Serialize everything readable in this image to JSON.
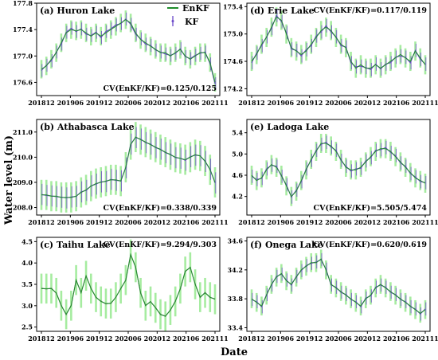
{
  "figure": {
    "ylabel": "Water level (m)",
    "xlabel": "Date",
    "legend": [
      {
        "label": "EnKF",
        "color": "#1e8c2a",
        "kind": "line"
      },
      {
        "label": "KF",
        "color": "#6a48c8",
        "kind": "errorbar"
      }
    ]
  },
  "chart_data": [
    {
      "id": "a",
      "type": "line",
      "title": "(a) Huron Lake",
      "cv": "CV(EnKF/KF)=0.125/0.125",
      "x_ticks": [
        "201812",
        "201906",
        "201912",
        "202006",
        "202012",
        "202106",
        "202111"
      ],
      "xlim": [
        0,
        35
      ],
      "ylim": [
        176.4,
        177.8
      ],
      "y_ticks": [
        "177.8",
        "177.4",
        "177.0",
        "176.6"
      ],
      "y_tick_values": [
        177.8,
        177.4,
        177.0,
        176.6
      ],
      "kf_style": "purple",
      "band_halfwidth": 0.14,
      "x": [
        0,
        1,
        2,
        3,
        4,
        5,
        6,
        7,
        8,
        9,
        10,
        11,
        12,
        13,
        14,
        15,
        16,
        17,
        18,
        19,
        20,
        21,
        22,
        23,
        24,
        25,
        26,
        27,
        28,
        29,
        30,
        31,
        32,
        33,
        34,
        35
      ],
      "series": [
        {
          "name": "EnKF",
          "values": [
            176.8,
            176.85,
            176.95,
            177.05,
            177.2,
            177.35,
            177.4,
            177.38,
            177.4,
            177.35,
            177.3,
            177.35,
            177.3,
            177.35,
            177.4,
            177.45,
            177.5,
            177.55,
            177.5,
            177.35,
            177.25,
            177.2,
            177.15,
            177.1,
            177.05,
            177.05,
            177.0,
            177.05,
            177.1,
            177.0,
            176.95,
            177.0,
            177.05,
            177.05,
            176.9,
            176.6
          ]
        },
        {
          "name": "KF",
          "values": [
            176.78,
            176.86,
            176.93,
            177.06,
            177.18,
            177.36,
            177.42,
            177.37,
            177.41,
            177.33,
            177.31,
            177.36,
            177.28,
            177.37,
            177.41,
            177.47,
            177.49,
            177.56,
            177.48,
            177.33,
            177.26,
            177.18,
            177.16,
            177.09,
            177.06,
            177.03,
            177.01,
            177.04,
            177.11,
            176.99,
            176.96,
            177.01,
            177.04,
            177.06,
            176.88,
            176.58
          ]
        }
      ]
    },
    {
      "id": "b",
      "type": "line",
      "title": "(b) Athabasca Lake",
      "cv": "CV(EnKF/KF)=0.338/0.339",
      "x_ticks": [
        "201812",
        "201906",
        "201912",
        "202006",
        "202012",
        "202106",
        "202111"
      ],
      "xlim": [
        0,
        35
      ],
      "ylim": [
        207.7,
        211.5
      ],
      "y_ticks": [
        "211.0",
        "210.0",
        "209.0",
        "208.0"
      ],
      "y_tick_values": [
        211.0,
        210.0,
        209.0,
        208.0
      ],
      "kf_style": "purple",
      "band_halfwidth": 0.6,
      "x": [
        0,
        1,
        2,
        3,
        4,
        5,
        6,
        7,
        8,
        9,
        10,
        11,
        12,
        13,
        14,
        15,
        16,
        17,
        18,
        19,
        20,
        21,
        22,
        23,
        24,
        25,
        26,
        27,
        28,
        29,
        30,
        31,
        32,
        33,
        34,
        35
      ],
      "series": [
        {
          "name": "EnKF",
          "values": [
            208.5,
            208.5,
            208.45,
            208.45,
            208.4,
            208.4,
            208.4,
            208.45,
            208.6,
            208.7,
            208.85,
            208.95,
            209.0,
            209.05,
            209.1,
            209.1,
            209.05,
            209.6,
            210.5,
            210.8,
            210.7,
            210.6,
            210.5,
            210.4,
            210.3,
            210.2,
            210.1,
            210.0,
            209.95,
            209.9,
            210.0,
            210.1,
            210.05,
            209.85,
            209.5,
            209.0
          ]
        },
        {
          "name": "KF",
          "values": [
            208.52,
            208.48,
            208.46,
            208.43,
            208.41,
            208.38,
            208.42,
            208.44,
            208.62,
            208.68,
            208.86,
            208.93,
            209.02,
            209.03,
            209.12,
            209.08,
            209.06,
            209.58,
            210.52,
            210.78,
            210.72,
            210.58,
            210.52,
            210.38,
            210.32,
            210.18,
            210.12,
            209.98,
            209.96,
            209.88,
            210.02,
            210.08,
            210.06,
            209.83,
            209.52,
            208.98
          ]
        }
      ]
    },
    {
      "id": "c",
      "type": "line",
      "title": "(c) Taihu Lake",
      "cv": "CV(EnKF/KF)=9.294/9.303",
      "x_ticks": [
        "201812",
        "201906",
        "201912",
        "202006",
        "202012",
        "202106",
        "202111"
      ],
      "xlim": [
        0,
        35
      ],
      "ylim": [
        2.4,
        4.6
      ],
      "y_ticks": [
        "4.5",
        "4.0",
        "3.5",
        "3.0",
        "2.5"
      ],
      "y_tick_values": [
        4.5,
        4.0,
        3.5,
        3.0,
        2.5
      ],
      "kf_style": "green",
      "band_halfwidth": 0.35,
      "x": [
        0,
        1,
        2,
        3,
        4,
        5,
        6,
        7,
        8,
        9,
        10,
        11,
        12,
        13,
        14,
        15,
        16,
        17,
        18,
        19,
        20,
        21,
        22,
        23,
        24,
        25,
        26,
        27,
        28,
        29,
        30,
        31,
        32,
        33,
        34,
        35
      ],
      "series": [
        {
          "name": "EnKF",
          "values": [
            3.4,
            3.4,
            3.4,
            3.3,
            3.0,
            2.8,
            3.0,
            3.6,
            3.3,
            3.7,
            3.4,
            3.2,
            3.1,
            3.05,
            3.05,
            3.2,
            3.4,
            3.6,
            4.2,
            3.9,
            3.3,
            3.0,
            3.1,
            2.95,
            2.8,
            2.75,
            2.9,
            3.1,
            3.4,
            3.8,
            3.9,
            3.5,
            3.2,
            3.3,
            3.2,
            3.15
          ]
        },
        {
          "name": "KF",
          "values": [
            3.41,
            3.39,
            3.41,
            3.29,
            3.01,
            2.79,
            3.01,
            3.59,
            3.31,
            3.69,
            3.41,
            3.19,
            3.11,
            3.04,
            3.06,
            3.19,
            3.41,
            3.59,
            4.19,
            3.91,
            3.29,
            3.01,
            3.09,
            2.96,
            2.79,
            2.76,
            2.89,
            3.11,
            3.39,
            3.81,
            3.89,
            3.51,
            3.19,
            3.31,
            3.19,
            3.16
          ]
        }
      ]
    },
    {
      "id": "d",
      "type": "line",
      "title": "(d) Erie Lake",
      "cv": "CV(EnKF/KF)=0.117/0.119",
      "x_ticks": [
        "201812",
        "201906",
        "201912",
        "202006",
        "202012",
        "202106",
        "202111"
      ],
      "xlim": [
        0,
        35
      ],
      "ylim": [
        174.1,
        175.45
      ],
      "y_ticks": [
        "175.4",
        "175.0",
        "174.6",
        "174.2"
      ],
      "y_tick_values": [
        175.4,
        175.0,
        174.6,
        174.2
      ],
      "kf_style": "purple",
      "band_halfwidth": 0.14,
      "x": [
        0,
        1,
        2,
        3,
        4,
        5,
        6,
        7,
        8,
        9,
        10,
        11,
        12,
        13,
        14,
        15,
        16,
        17,
        18,
        19,
        20,
        21,
        22,
        23,
        24,
        25,
        26,
        27,
        28,
        29,
        30,
        31,
        32,
        33,
        34,
        35
      ],
      "series": [
        {
          "name": "EnKF",
          "values": [
            174.6,
            174.7,
            174.85,
            174.95,
            175.1,
            175.25,
            175.2,
            175.0,
            174.8,
            174.75,
            174.7,
            174.75,
            174.85,
            174.95,
            175.05,
            175.1,
            175.05,
            174.95,
            174.85,
            174.8,
            174.6,
            174.5,
            174.55,
            174.5,
            174.5,
            174.55,
            174.5,
            174.55,
            174.6,
            174.65,
            174.7,
            174.65,
            174.6,
            174.75,
            174.65,
            174.55
          ]
        },
        {
          "name": "KF",
          "values": [
            174.58,
            174.72,
            174.83,
            174.96,
            175.08,
            175.27,
            175.18,
            175.02,
            174.78,
            174.76,
            174.68,
            174.77,
            174.83,
            174.97,
            175.03,
            175.12,
            175.03,
            174.96,
            174.83,
            174.81,
            174.58,
            174.52,
            174.53,
            174.51,
            174.48,
            174.56,
            174.49,
            174.56,
            174.58,
            174.66,
            174.68,
            174.66,
            174.58,
            174.76,
            174.63,
            174.56
          ]
        }
      ]
    },
    {
      "id": "e",
      "type": "line",
      "title": "(e) Ladoga Lake",
      "cv": "CV(EnKF/KF)=5.505/5.474",
      "x_ticks": [
        "201812",
        "201906",
        "201912",
        "202006",
        "202012",
        "202106",
        "202111"
      ],
      "xlim": [
        0,
        35
      ],
      "ylim": [
        3.85,
        5.65
      ],
      "y_ticks": [
        "5.4",
        "5.0",
        "4.6",
        "4.2"
      ],
      "y_tick_values": [
        5.4,
        5.0,
        4.6,
        4.2
      ],
      "kf_style": "purple",
      "band_halfwidth": 0.18,
      "x": [
        0,
        1,
        2,
        3,
        4,
        5,
        6,
        7,
        8,
        9,
        10,
        11,
        12,
        13,
        14,
        15,
        16,
        17,
        18,
        19,
        20,
        21,
        22,
        23,
        24,
        25,
        26,
        27,
        28,
        29,
        30,
        31,
        32,
        33,
        34,
        35
      ],
      "series": [
        {
          "name": "EnKF",
          "values": [
            4.6,
            4.5,
            4.55,
            4.7,
            4.8,
            4.75,
            4.6,
            4.4,
            4.2,
            4.3,
            4.5,
            4.7,
            4.9,
            5.05,
            5.2,
            5.2,
            5.15,
            5.05,
            4.9,
            4.75,
            4.7,
            4.7,
            4.75,
            4.85,
            4.95,
            5.05,
            5.1,
            5.1,
            5.05,
            4.95,
            4.85,
            4.75,
            4.65,
            4.55,
            4.5,
            4.45
          ]
        },
        {
          "name": "KF",
          "values": [
            4.58,
            4.52,
            4.54,
            4.72,
            4.79,
            4.77,
            4.58,
            4.42,
            4.19,
            4.32,
            4.48,
            4.72,
            4.88,
            5.07,
            5.18,
            5.22,
            5.13,
            5.07,
            4.88,
            4.77,
            4.68,
            4.72,
            4.73,
            4.87,
            4.93,
            5.07,
            5.08,
            5.12,
            5.03,
            4.97,
            4.83,
            4.77,
            4.63,
            4.57,
            4.48,
            4.46
          ]
        }
      ]
    },
    {
      "id": "f",
      "type": "line",
      "title": "(f) Onega Lake",
      "cv": "CV(EnKF/KF)=0.620/0.619",
      "x_ticks": [
        "201812",
        "201906",
        "201912",
        "202006",
        "202012",
        "202106",
        "202111"
      ],
      "xlim": [
        0,
        35
      ],
      "ylim": [
        33.35,
        34.65
      ],
      "y_ticks": [
        "34.6",
        "34.2",
        "33.8",
        "33.4"
      ],
      "y_tick_values": [
        34.6,
        34.2,
        33.8,
        33.4
      ],
      "kf_style": "purple",
      "band_halfwidth": 0.13,
      "x": [
        0,
        1,
        2,
        3,
        4,
        5,
        6,
        7,
        8,
        9,
        10,
        11,
        12,
        13,
        14,
        15,
        16,
        17,
        18,
        19,
        20,
        21,
        22,
        23,
        24,
        25,
        26,
        27,
        28,
        29,
        30,
        31,
        32,
        33,
        34,
        35
      ],
      "series": [
        {
          "name": "EnKF",
          "values": [
            33.8,
            33.75,
            33.7,
            33.85,
            34.0,
            34.1,
            34.15,
            34.05,
            34.0,
            34.1,
            34.2,
            34.25,
            34.3,
            34.3,
            34.35,
            34.2,
            34.0,
            33.95,
            33.9,
            33.85,
            33.8,
            33.75,
            33.7,
            33.8,
            33.85,
            33.95,
            34.0,
            33.95,
            33.9,
            33.85,
            33.8,
            33.75,
            33.7,
            33.65,
            33.6,
            33.65
          ]
        },
        {
          "name": "KF",
          "values": [
            33.79,
            33.76,
            33.69,
            33.86,
            33.99,
            34.11,
            34.14,
            34.06,
            33.99,
            34.11,
            34.19,
            34.26,
            34.29,
            34.31,
            34.34,
            34.21,
            33.99,
            33.96,
            33.89,
            33.86,
            33.79,
            33.76,
            33.69,
            33.81,
            33.84,
            33.96,
            33.99,
            33.96,
            33.89,
            33.86,
            33.79,
            33.76,
            33.69,
            33.66,
            33.59,
            33.66
          ]
        }
      ]
    }
  ]
}
